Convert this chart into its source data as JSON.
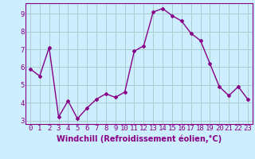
{
  "x": [
    0,
    1,
    2,
    3,
    4,
    5,
    6,
    7,
    8,
    9,
    10,
    11,
    12,
    13,
    14,
    15,
    16,
    17,
    18,
    19,
    20,
    21,
    22,
    23
  ],
  "y": [
    5.9,
    5.5,
    7.1,
    3.2,
    4.1,
    3.1,
    3.7,
    4.2,
    4.5,
    4.3,
    4.6,
    6.9,
    7.2,
    9.1,
    9.3,
    8.9,
    8.6,
    7.9,
    7.5,
    6.2,
    4.9,
    4.4,
    4.9,
    4.2
  ],
  "line_color": "#880088",
  "marker": "D",
  "marker_size": 2.0,
  "bg_color": "#cceeff",
  "grid_color": "#aacccc",
  "xlabel": "Windchill (Refroidissement éolien,°C)",
  "ylim": [
    2.8,
    9.6
  ],
  "xlim": [
    -0.5,
    23.5
  ],
  "yticks": [
    3,
    4,
    5,
    6,
    7,
    8,
    9
  ],
  "xticks": [
    0,
    1,
    2,
    3,
    4,
    5,
    6,
    7,
    8,
    9,
    10,
    11,
    12,
    13,
    14,
    15,
    16,
    17,
    18,
    19,
    20,
    21,
    22,
    23
  ],
  "xlabel_fontsize": 7,
  "tick_fontsize": 6.5,
  "line_width": 1.0
}
